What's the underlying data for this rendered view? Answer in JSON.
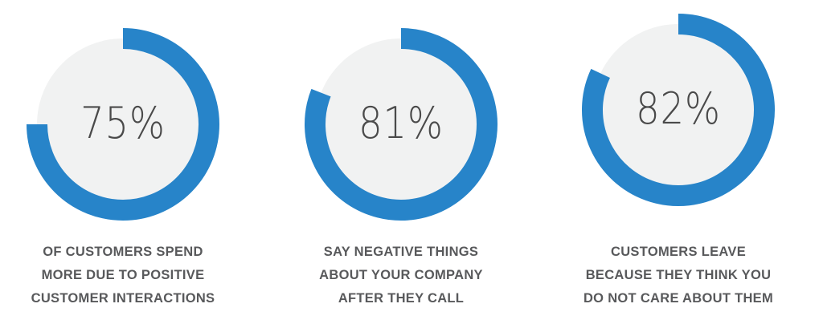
{
  "accent_color": "#2784c9",
  "ring_bg_color": "#f1f2f2",
  "chart_data": [
    {
      "type": "donut",
      "value": 75,
      "max": 100,
      "label": "75%",
      "caption": [
        "OF CUSTOMERS SPEND",
        "MORE DUE TO POSITIVE",
        "CUSTOMER INTERACTIONS"
      ]
    },
    {
      "type": "donut",
      "value": 81,
      "max": 100,
      "label": "81%",
      "caption": [
        "SAY NEGATIVE THINGS",
        "ABOUT YOUR COMPANY",
        "AFTER THEY CALL"
      ]
    },
    {
      "type": "donut",
      "value": 82,
      "max": 100,
      "label": "82%",
      "caption": [
        "CUSTOMERS LEAVE",
        "BECAUSE THEY THINK YOU",
        "DO NOT CARE ABOUT THEM"
      ]
    }
  ]
}
